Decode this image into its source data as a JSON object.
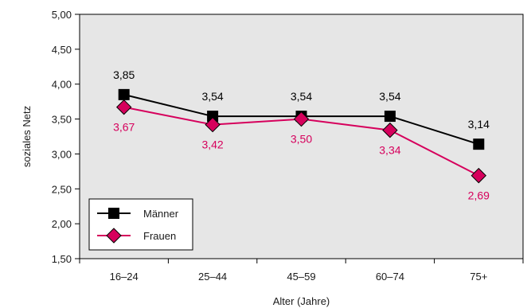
{
  "chart_data": {
    "type": "line",
    "xlabel": "Alter (Jahre)",
    "ylabel": "soziales Netz",
    "categories": [
      "16–24",
      "25–44",
      "45–59",
      "60–74",
      "75+"
    ],
    "ylim": [
      1.5,
      5.0
    ],
    "yticks": [
      "1,50",
      "2,00",
      "2,50",
      "3,00",
      "3,50",
      "4,00",
      "4,50",
      "5,00"
    ],
    "grid": false,
    "legend_position": "bottom-left",
    "series": [
      {
        "name": "Männer",
        "values": [
          3.85,
          3.54,
          3.54,
          3.54,
          3.14
        ],
        "labels": [
          "3,85",
          "3,54",
          "3,54",
          "3,54",
          "3,14"
        ],
        "color": "#000000",
        "marker": "square",
        "label_color": "#000000"
      },
      {
        "name": "Frauen",
        "values": [
          3.67,
          3.42,
          3.5,
          3.34,
          2.69
        ],
        "labels": [
          "3,67",
          "3,42",
          "3,50",
          "3,34",
          "2,69"
        ],
        "color": "#d6005c",
        "marker": "diamond",
        "label_color": "#d6005c"
      }
    ],
    "plot_background": "#e6e6e6"
  }
}
